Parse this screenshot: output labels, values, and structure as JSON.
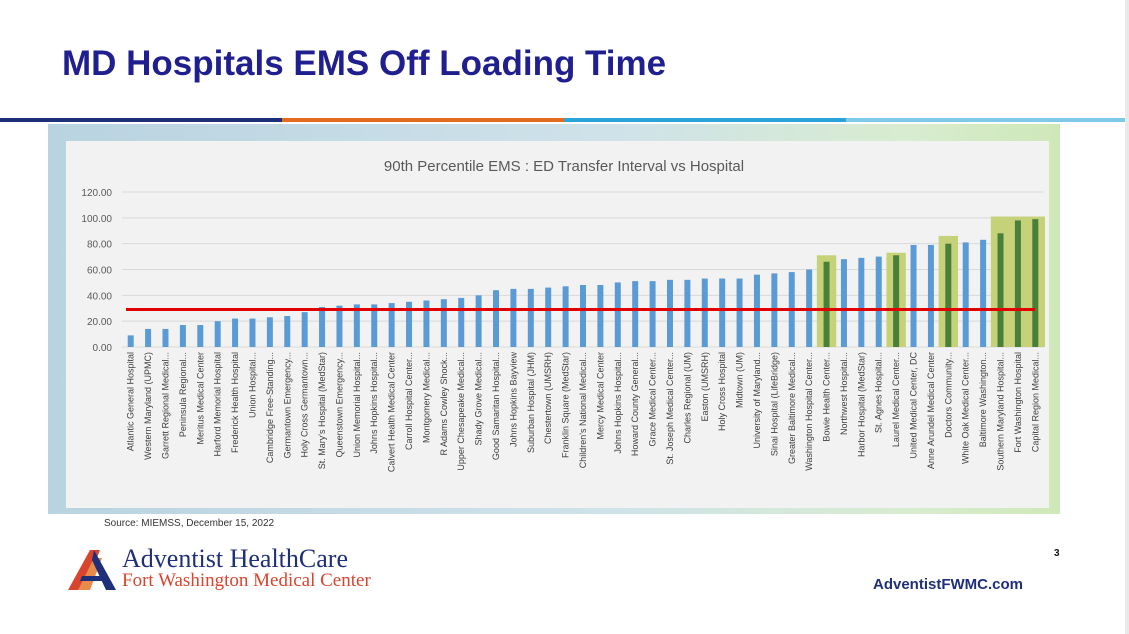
{
  "slide": {
    "title": "MD Hospitals EMS Off Loading Time",
    "source": "Source: MIEMSS, December 15, 2022",
    "page_number": "3",
    "url": "AdventistFWMC.com"
  },
  "brand": {
    "name": "Adventist HealthCare",
    "subtitle": "Fort Washington Medical Center",
    "logo_icon": "adventist-a-logo-icon"
  },
  "colors": {
    "title": "#1f1f8f",
    "bar": "#5b9bd5",
    "bar_highlight": "#4a7f39",
    "highlight_fill": "#c5d27a",
    "threshold_line": "#e00000",
    "brand_navy": "#1f2f7a",
    "brand_red": "#d8452f",
    "rule_segments": [
      "#1f2f7a",
      "#e36a1e",
      "#2aa3d8",
      "#7ec8e8"
    ]
  },
  "chart_data": {
    "type": "bar",
    "title": "90th Percentile EMS : ED Transfer Interval vs Hospital",
    "xlabel": "",
    "ylabel": "",
    "ylim": [
      0,
      120
    ],
    "yticks": [
      "0.00",
      "20.00",
      "40.00",
      "60.00",
      "80.00",
      "100.00",
      "120.00"
    ],
    "gridlines": true,
    "threshold": 29,
    "categories": [
      "Atlantic General Hospital",
      "Western Maryland (UPMC)",
      "Garrett Regional Medical...",
      "Peninsula Regional...",
      "Meritus Medical Center",
      "Harford Memorial Hospital",
      "Frederick Health Hospital",
      "Union Hospital...",
      "Cambridge Free-Standing...",
      "Germantown Emergency...",
      "Holy Cross Germantown...",
      "St. Mary's Hospital (MedStar)",
      "Queenstown Emergency...",
      "Union Memorial Hospital...",
      "Johns Hopkins Hospital...",
      "Calvert Health Medical Center",
      "Carroll Hospital Center...",
      "Montgomery Medical...",
      "R Adams Cowley Shock...",
      "Upper Chesapeake Medical...",
      "Shady Grove Medical...",
      "Good Samaritan Hospital...",
      "Johns Hopkins Bayview",
      "Suburban Hospital (JHM)",
      "Chestertown (UMSRH)",
      "Franklin Square (MedStar)",
      "Children's National Medical...",
      "Mercy Medical Center",
      "Johns Hopkins Hospital...",
      "Howard County General...",
      "Grace Medical Center...",
      "St. Joseph Medical Center...",
      "Charles Regional (UM)",
      "Easton (UMSRH)",
      "Holy Cross Hospital",
      "Midtown (UM)",
      "University of Maryland...",
      "Sinai Hospital (LifeBridge)",
      "Greater Baltimore Medical...",
      "Washington Hospital Center...",
      "Bowie Health Center...",
      "Northwest Hospital...",
      "Harbor Hospital (MedStar)",
      "St. Agnes Hospital...",
      "Laurel Medical Center...",
      "United Medical Center, DC",
      "Anne Arundel Medical Center",
      "Doctors Community...",
      "White Oak Medical Center...",
      "Baltimore Washington...",
      "Southern Maryland Hospital...",
      "Fort Washington Hospital",
      "Capital Region Medical..."
    ],
    "values": [
      9,
      14,
      14,
      17,
      17,
      20,
      22,
      22,
      23,
      24,
      27,
      31,
      32,
      33,
      33,
      34,
      35,
      36,
      37,
      38,
      40,
      44,
      45,
      45,
      46,
      47,
      48,
      48,
      50,
      51,
      51,
      52,
      52,
      53,
      53,
      53,
      56,
      57,
      58,
      60,
      66,
      68,
      69,
      70,
      71,
      79,
      79,
      80,
      81,
      83,
      88,
      98,
      99
    ],
    "highlighted": [
      "Bowie Health Center...",
      "Laurel Medical Center...",
      "Doctors Community...",
      "Southern Maryland Hospital...",
      "Fort Washington Hospital",
      "Capital Region Medical..."
    ],
    "highlight_boxes": [
      {
        "from": 40,
        "to": 40,
        "top": 71
      },
      {
        "from": 44,
        "to": 44,
        "top": 73
      },
      {
        "from": 47,
        "to": 47,
        "top": 86
      },
      {
        "from": 50,
        "to": 52,
        "top": 101
      }
    ]
  }
}
